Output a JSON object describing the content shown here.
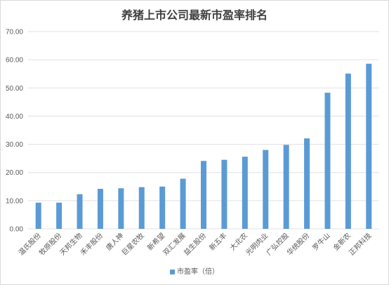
{
  "chart_data": {
    "type": "bar",
    "title": "养猪上市公司最新市盈率排名",
    "categories": [
      "温氏股份",
      "牧原股份",
      "天邦生物",
      "禾丰股份",
      "唐人神",
      "巨星农牧",
      "新希望",
      "双汇发展",
      "益生股份",
      "新五丰",
      "大北农",
      "光明肉业",
      "广弘控股",
      "华统股份",
      "罗牛山",
      "金新农",
      "正邦科技"
    ],
    "series": [
      {
        "name": "市盈率（倍）",
        "values": [
          9.3,
          9.3,
          12.3,
          14.2,
          14.4,
          14.8,
          15.0,
          17.8,
          24.1,
          24.5,
          25.6,
          28.0,
          29.8,
          32.1,
          48.3,
          55.1,
          58.6
        ]
      }
    ],
    "yticks": [
      "0.00",
      "10.00",
      "20.00",
      "30.00",
      "40.00",
      "50.00",
      "60.00",
      "70.00"
    ],
    "ylim": [
      0,
      70
    ],
    "grid": true,
    "legend_position": "bottom",
    "colors": {
      "bar": "#5b9bd5",
      "grid": "#e0e0e0"
    }
  }
}
